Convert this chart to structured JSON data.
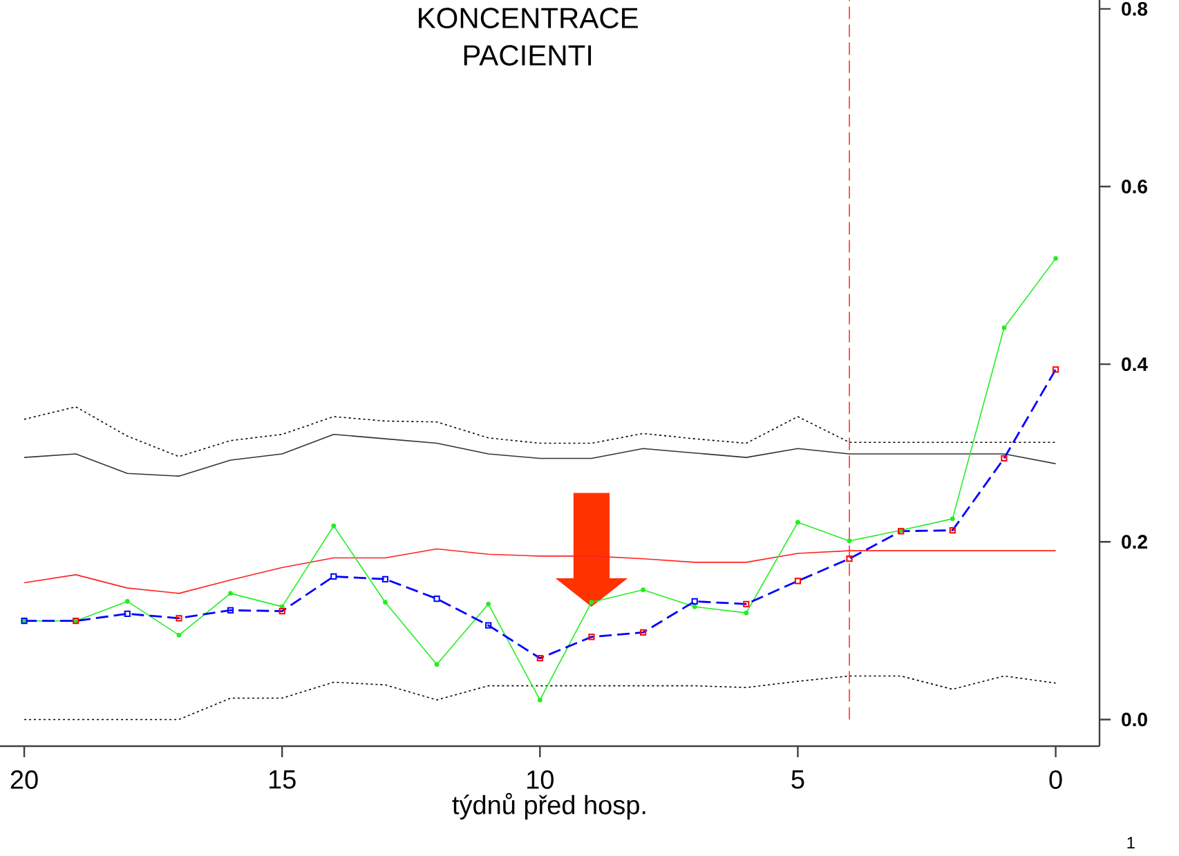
{
  "chart_data": {
    "type": "line",
    "title": "KONCENTRACE PACIENTI",
    "xlabel": "týdnů před hosp.",
    "x": [
      20,
      19,
      18,
      17,
      16,
      15,
      14,
      13,
      12,
      11,
      10,
      9,
      8,
      7,
      6,
      5,
      4,
      3,
      2,
      1,
      0
    ],
    "series": [
      {
        "color": "#000000",
        "line_style": "dotted",
        "values": [
          0.338,
          0.352,
          0.319,
          0.296,
          0.314,
          0.321,
          0.341,
          0.336,
          0.335,
          0.317,
          0.311,
          0.311,
          0.322,
          0.316,
          0.311,
          0.341,
          0.312,
          0.312,
          0.312,
          0.312,
          0.312
        ]
      },
      {
        "color": "#333333",
        "line_style": "solid",
        "values": [
          0.295,
          0.299,
          0.277,
          0.274,
          0.292,
          0.299,
          0.321,
          0.316,
          0.311,
          0.299,
          0.294,
          0.294,
          0.305,
          0.3,
          0.295,
          0.305,
          0.299,
          0.299,
          0.299,
          0.299,
          0.288
        ]
      },
      {
        "color": "#000000",
        "line_style": "dotted",
        "values": [
          0.0,
          0.0,
          0.0,
          0.0,
          0.024,
          0.024,
          0.042,
          0.039,
          0.022,
          0.038,
          0.038,
          0.038,
          0.038,
          0.038,
          0.036,
          0.043,
          0.049,
          0.049,
          0.034,
          0.049,
          0.041
        ]
      },
      {
        "color": "#ff2020",
        "line_style": "solid",
        "values": [
          0.154,
          0.163,
          0.148,
          0.142,
          0.157,
          0.171,
          0.182,
          0.182,
          0.192,
          0.186,
          0.184,
          0.184,
          0.181,
          0.177,
          0.177,
          0.187,
          0.19,
          0.19,
          0.19,
          0.19,
          0.19
        ]
      },
      {
        "color": "#22ee22",
        "line_style": "solid",
        "marker": "circle",
        "values": [
          0.111,
          0.111,
          0.133,
          0.095,
          0.142,
          0.127,
          0.218,
          0.132,
          0.062,
          0.13,
          0.022,
          0.132,
          0.146,
          0.127,
          0.12,
          0.222,
          0.201,
          0.213,
          0.226,
          0.441,
          0.519
        ]
      },
      {
        "color": "#0000ff",
        "line_style": "dashed",
        "marker": "square",
        "colors": [
          "#0000ff",
          "#ff0000",
          "#0000ff",
          "#ff0000",
          "#0000ff",
          "#ff0000",
          "#0000ff",
          "#0000ff",
          "#0000ff",
          "#0000ff",
          "#ff0000",
          "#ff0000",
          "#ff0000",
          "#0000ff",
          "#ff0000",
          "#ff0000",
          "#ff0000",
          "#ff0000",
          "#ff0000",
          "#ff0000",
          "#ff0000"
        ],
        "values": [
          0.111,
          0.111,
          0.119,
          0.114,
          0.123,
          0.122,
          0.161,
          0.158,
          0.136,
          0.106,
          0.069,
          0.093,
          0.098,
          0.133,
          0.13,
          0.156,
          0.181,
          0.212,
          0.213,
          0.294,
          0.394
        ]
      }
    ],
    "ref_lines": [
      {
        "axis": "x",
        "value": 4,
        "color": "#ff3030",
        "line_style": "dashed"
      }
    ],
    "xlim": [
      20.47,
      -0.85
    ],
    "ylim": [
      -0.03,
      0.81
    ],
    "xticks": [
      20,
      15,
      10,
      5,
      0
    ],
    "yticks": [
      {
        "value": 0,
        "label": "0.0"
      },
      0.2,
      0.4,
      0.6,
      0.8
    ],
    "annotations": [
      "1"
    ]
  }
}
